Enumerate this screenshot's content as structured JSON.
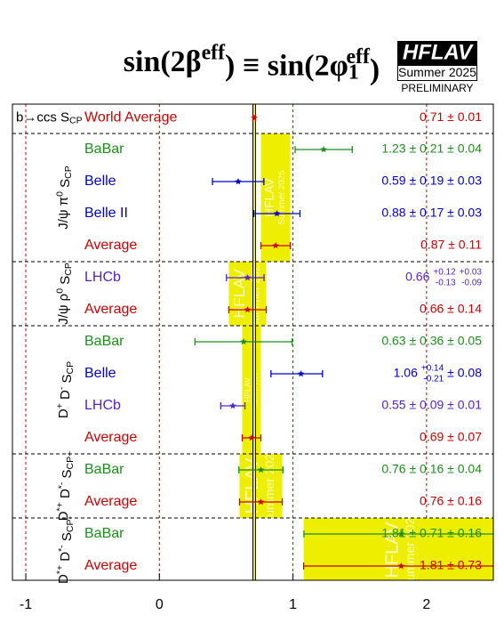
{
  "chart_data": {
    "type": "forest",
    "title": [
      {
        "text": "sin(2β"
      },
      {
        "sup": "eff"
      },
      {
        "text": ") ≡ sin(2φ"
      },
      {
        "sub": "1",
        "sup": "eff"
      },
      {
        "text": ")"
      }
    ],
    "logo": "HFLAV",
    "edition": "Summer 2025",
    "status": "PRELIMINARY",
    "xlim": [
      -1.1,
      2.5
    ],
    "xticks": [
      -1,
      0,
      1,
      2
    ],
    "grid": true,
    "band_color": "#eeee00",
    "world_average": {
      "label": [
        {
          "text": "b→ccs S"
        },
        {
          "sub": "CP"
        }
      ],
      "name": "World Average",
      "color": "#cc0000",
      "value": 0.71,
      "errors": [
        0.01
      ],
      "value_label": [
        "0.71 ± 0.01"
      ]
    },
    "groups": [
      {
        "label": [
          {
            "text": "J/ψ π"
          },
          {
            "sup": "0"
          },
          {
            "text": " S"
          },
          {
            "sub": "CP"
          }
        ],
        "rows": [
          {
            "name": "BaBar",
            "color": "#1b8f1b",
            "value": 1.23,
            "errors": [
              0.21,
              0.04
            ],
            "value_label": [
              "1.23 ± 0.21 ± 0.04"
            ]
          },
          {
            "name": "Belle",
            "color": "#0000cc",
            "value": 0.59,
            "errors": [
              0.19,
              0.03
            ],
            "value_label": [
              "0.59 ± 0.19 ± 0.03"
            ]
          },
          {
            "name": "Belle II",
            "color": "#0000cc",
            "value": 0.88,
            "errors": [
              0.17,
              0.03
            ],
            "value_label": [
              "0.88 ± 0.17 ± 0.03"
            ]
          },
          {
            "name": "Average",
            "color": "#cc0000",
            "value": 0.87,
            "errors": [
              0.11
            ],
            "value_label": [
              "0.87 ± 0.11"
            ]
          }
        ]
      },
      {
        "label": [
          {
            "text": "J/ψ ρ"
          },
          {
            "sup": "0"
          },
          {
            "text": " S"
          },
          {
            "sub": "CP"
          }
        ],
        "rows": [
          {
            "name": "LHCb",
            "color": "#5522cc",
            "value": 0.66,
            "errors": [
              {
                "plus": 0.12,
                "minus": 0.13
              },
              {
                "plus": 0.03,
                "minus": 0.09
              }
            ],
            "value_label": [
              "0.66",
              {
                "plus": "+0.12",
                "minus": "-0.13"
              },
              {
                "plus": "+0.03",
                "minus": "-0.09"
              }
            ]
          },
          {
            "name": "Average",
            "color": "#cc0000",
            "value": 0.66,
            "errors": [
              0.14
            ],
            "value_label": [
              "0.66 ± 0.14"
            ]
          }
        ]
      },
      {
        "label": [
          {
            "text": "D"
          },
          {
            "sup": "+"
          },
          {
            "text": " D"
          },
          {
            "sup": "-"
          },
          {
            "text": " S"
          },
          {
            "sub": "CP"
          }
        ],
        "rows": [
          {
            "name": "BaBar",
            "color": "#1b8f1b",
            "value": 0.63,
            "errors": [
              0.36,
              0.05
            ],
            "value_label": [
              "0.63 ± 0.36 ± 0.05"
            ]
          },
          {
            "name": "Belle",
            "color": "#0000cc",
            "value": 1.06,
            "errors": [
              {
                "plus": 0.14,
                "minus": 0.21
              },
              0.08
            ],
            "value_label": [
              "1.06",
              {
                "plus": "+0.14",
                "minus": "-0.21"
              },
              "± 0.08"
            ]
          },
          {
            "name": "LHCb",
            "color": "#5522cc",
            "value": 0.55,
            "errors": [
              0.09,
              0.01
            ],
            "value_label": [
              "0.55 ± 0.09 ± 0.01"
            ]
          },
          {
            "name": "Average",
            "color": "#cc0000",
            "value": 0.69,
            "errors": [
              0.07
            ],
            "value_label": [
              "0.69 ± 0.07"
            ]
          }
        ]
      },
      {
        "label": [
          {
            "text": "D"
          },
          {
            "sup": "*+"
          },
          {
            "text": " D"
          },
          {
            "sup": "*-"
          },
          {
            "text": " S"
          },
          {
            "sub": "CP+"
          }
        ],
        "rows": [
          {
            "name": "BaBar",
            "color": "#1b8f1b",
            "value": 0.76,
            "errors": [
              0.16,
              0.04
            ],
            "value_label": [
              "0.76 ± 0.16 ± 0.04"
            ]
          },
          {
            "name": "Average",
            "color": "#cc0000",
            "value": 0.76,
            "errors": [
              0.16
            ],
            "value_label": [
              "0.76 ± 0.16"
            ]
          }
        ]
      },
      {
        "label": [
          {
            "text": "D"
          },
          {
            "sup": "*+"
          },
          {
            "text": " D"
          },
          {
            "sup": "*-"
          },
          {
            "text": " S"
          },
          {
            "sub": "CP-"
          }
        ],
        "rows": [
          {
            "name": "BaBar",
            "color": "#1b8f1b",
            "value": 1.81,
            "errors": [
              0.71,
              0.16
            ],
            "value_label": [
              "1.81 ± 0.71 ± 0.16"
            ]
          },
          {
            "name": "Average",
            "color": "#cc0000",
            "value": 1.81,
            "errors": [
              0.73
            ],
            "value_label": [
              "1.81 ± 0.73"
            ]
          }
        ]
      }
    ]
  }
}
